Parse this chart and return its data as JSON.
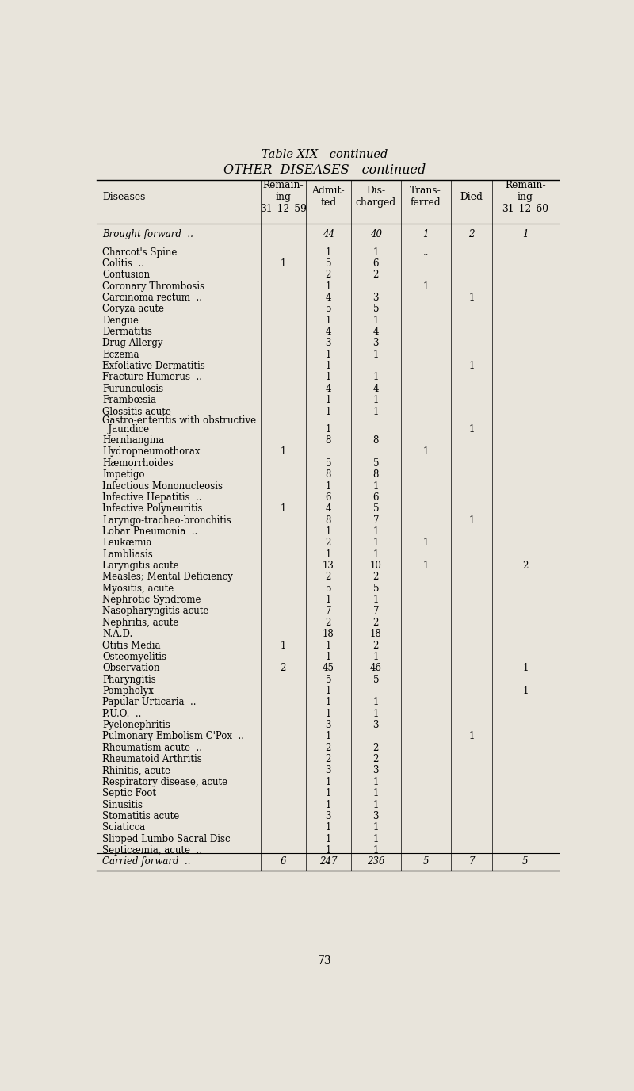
{
  "title1": "Table XIX—continued",
  "title2": "OTHER  DISEASES—continued",
  "page_number": "73",
  "bg_color": "#e8e4db",
  "col_headers": [
    "Diseases",
    "Remain-\ning\n31–12–59",
    "Admit-\nted",
    "Dis-\ncharged",
    "Trans-\nferred",
    "Died",
    "Remain-\ning\n31–12–60"
  ],
  "rows": [
    {
      "name": "Brought forward  ..",
      "italic": true,
      "r59": "",
      "adm": "44",
      "dis": "40",
      "tra": "1",
      "die": "2",
      "r60": "1"
    },
    {
      "name": "Charcot's Spine",
      "italic": false,
      "r59": "",
      "adm": "1",
      "dis": "1",
      "tra": "..",
      "die": "",
      "r60": ""
    },
    {
      "name": "Colitis  ..",
      "italic": false,
      "r59": "1",
      "adm": "5",
      "dis": "6",
      "tra": "",
      "die": "",
      "r60": ""
    },
    {
      "name": "Contusion",
      "italic": false,
      "r59": "",
      "adm": "2",
      "dis": "2",
      "tra": "",
      "die": "",
      "r60": ""
    },
    {
      "name": "Coronary Thrombosis",
      "italic": false,
      "r59": "",
      "adm": "1",
      "dis": "",
      "tra": "1",
      "die": "",
      "r60": ""
    },
    {
      "name": "Carcinoma rectum  ..",
      "italic": false,
      "r59": "",
      "adm": "4",
      "dis": "3",
      "tra": "",
      "die": "1",
      "r60": ""
    },
    {
      "name": "Coryza acute",
      "italic": false,
      "r59": "",
      "adm": "5",
      "dis": "5",
      "tra": "",
      "die": "",
      "r60": ""
    },
    {
      "name": "Dengue",
      "italic": false,
      "r59": "",
      "adm": "1",
      "dis": "1",
      "tra": "",
      "die": "",
      "r60": ""
    },
    {
      "name": "Dermatitis",
      "italic": false,
      "r59": "",
      "adm": "4",
      "dis": "4",
      "tra": "",
      "die": "",
      "r60": ""
    },
    {
      "name": "Drug Allergy",
      "italic": false,
      "r59": "",
      "adm": "3",
      "dis": "3",
      "tra": "",
      "die": "",
      "r60": ""
    },
    {
      "name": "Eczema",
      "italic": false,
      "r59": "",
      "adm": "1",
      "dis": "1",
      "tra": "",
      "die": "",
      "r60": ""
    },
    {
      "name": "Exfoliative Dermatitis",
      "italic": false,
      "r59": "",
      "adm": "1",
      "dis": "",
      "tra": "",
      "die": "1",
      "r60": ""
    },
    {
      "name": "Fracture Humerus  ..",
      "italic": false,
      "r59": "",
      "adm": "1",
      "dis": "1",
      "tra": "",
      "die": "",
      "r60": ""
    },
    {
      "name": "Furunculosis",
      "italic": false,
      "r59": "",
      "adm": "4",
      "dis": "4",
      "tra": "",
      "die": "",
      "r60": ""
    },
    {
      "name": "Frambœsia",
      "italic": false,
      "r59": "",
      "adm": "1",
      "dis": "1",
      "tra": "",
      "die": "",
      "r60": ""
    },
    {
      "name": "Glossitis acute",
      "italic": false,
      "r59": "",
      "adm": "1",
      "dis": "1",
      "tra": "",
      "die": "",
      "r60": ""
    },
    {
      "name": "Gastro-enteritis with obstructive",
      "italic": false,
      "r59": "",
      "adm": "",
      "dis": "",
      "tra": "",
      "die": "",
      "r60": "",
      "continuation": true
    },
    {
      "name": "  Jaundice",
      "italic": false,
      "r59": "",
      "adm": "1",
      "dis": "",
      "tra": "",
      "die": "1",
      "r60": ""
    },
    {
      "name": "Hern̩hangina",
      "italic": false,
      "r59": "",
      "adm": "8",
      "dis": "8",
      "tra": "",
      "die": "",
      "r60": ""
    },
    {
      "name": "Hydropneumothorax",
      "italic": false,
      "r59": "1",
      "adm": "",
      "dis": "",
      "tra": "1",
      "die": "",
      "r60": ""
    },
    {
      "name": "Hæmorrhoides",
      "italic": false,
      "r59": "",
      "adm": "5",
      "dis": "5",
      "tra": "",
      "die": "",
      "r60": ""
    },
    {
      "name": "Impetigo",
      "italic": false,
      "r59": "",
      "adm": "8",
      "dis": "8",
      "tra": "",
      "die": "",
      "r60": ""
    },
    {
      "name": "Infectious Mononucleosis",
      "italic": false,
      "r59": "",
      "adm": "1",
      "dis": "1",
      "tra": "",
      "die": "",
      "r60": ""
    },
    {
      "name": "Infective Hepatitis  ..",
      "italic": false,
      "r59": "",
      "adm": "6",
      "dis": "6",
      "tra": "",
      "die": "",
      "r60": ""
    },
    {
      "name": "Infective Polyneuritis",
      "italic": false,
      "r59": "1",
      "adm": "4",
      "dis": "5",
      "tra": "",
      "die": "",
      "r60": ""
    },
    {
      "name": "Laryngo-tracheo-bronchitis",
      "italic": false,
      "r59": "",
      "adm": "8",
      "dis": "7",
      "tra": "",
      "die": "1",
      "r60": ""
    },
    {
      "name": "Lobar Pneumonia  ..",
      "italic": false,
      "r59": "",
      "adm": "1",
      "dis": "1",
      "tra": "",
      "die": "",
      "r60": ""
    },
    {
      "name": "Leukæmia",
      "italic": false,
      "r59": "",
      "adm": "2",
      "dis": "1",
      "tra": "1",
      "die": "",
      "r60": ""
    },
    {
      "name": "Lambliasis",
      "italic": false,
      "r59": "",
      "adm": "1",
      "dis": "1",
      "tra": "",
      "die": "",
      "r60": ""
    },
    {
      "name": "Laryngitis acute",
      "italic": false,
      "r59": "",
      "adm": "13",
      "dis": "10",
      "tra": "1",
      "die": "",
      "r60": "2"
    },
    {
      "name": "Measles; Mental Deficiency",
      "italic": false,
      "r59": "",
      "adm": "2",
      "dis": "2",
      "tra": "",
      "die": "",
      "r60": ""
    },
    {
      "name": "Myositis, acute",
      "italic": false,
      "r59": "",
      "adm": "5",
      "dis": "5",
      "tra": "",
      "die": "",
      "r60": ""
    },
    {
      "name": "Nephrotic Syndrome",
      "italic": false,
      "r59": "",
      "adm": "1",
      "dis": "1",
      "tra": "",
      "die": "",
      "r60": ""
    },
    {
      "name": "Nasopharyngitis acute",
      "italic": false,
      "r59": "",
      "adm": "7",
      "dis": "7",
      "tra": "",
      "die": "",
      "r60": ""
    },
    {
      "name": "Nephritis, acute",
      "italic": false,
      "r59": "",
      "adm": "2",
      "dis": "2",
      "tra": "",
      "die": "",
      "r60": ""
    },
    {
      "name": "N.A.D.",
      "italic": false,
      "r59": "",
      "adm": "18",
      "dis": "18",
      "tra": "",
      "die": "",
      "r60": ""
    },
    {
      "name": "Otitis Media",
      "italic": false,
      "r59": "1",
      "adm": "1",
      "dis": "2",
      "tra": "",
      "die": "",
      "r60": ""
    },
    {
      "name": "Osteomyelitis",
      "italic": false,
      "r59": "",
      "adm": "1",
      "dis": "1",
      "tra": "",
      "die": "",
      "r60": ""
    },
    {
      "name": "Observation",
      "italic": false,
      "r59": "2",
      "adm": "45",
      "dis": "46",
      "tra": "",
      "die": "",
      "r60": "1"
    },
    {
      "name": "Pharyngitis",
      "italic": false,
      "r59": "",
      "adm": "5",
      "dis": "5",
      "tra": "",
      "die": "",
      "r60": ""
    },
    {
      "name": "Pompholyx",
      "italic": false,
      "r59": "",
      "adm": "1",
      "dis": "",
      "tra": "",
      "die": "",
      "r60": "1"
    },
    {
      "name": "Papular Urticaria  ..",
      "italic": false,
      "r59": "",
      "adm": "1",
      "dis": "1",
      "tra": "",
      "die": "",
      "r60": ""
    },
    {
      "name": "P.U.O.  ..",
      "italic": false,
      "r59": "",
      "adm": "1",
      "dis": "1",
      "tra": "",
      "die": "",
      "r60": ""
    },
    {
      "name": "Pyelonephritis",
      "italic": false,
      "r59": "",
      "adm": "3",
      "dis": "3",
      "tra": "",
      "die": "",
      "r60": ""
    },
    {
      "name": "Pulmonary Embolism C'Pox  ..",
      "italic": false,
      "r59": "",
      "adm": "1",
      "dis": "",
      "tra": "",
      "die": "1",
      "r60": ""
    },
    {
      "name": "Rheumatism acute  ..",
      "italic": false,
      "r59": "",
      "adm": "2",
      "dis": "2",
      "tra": "",
      "die": "",
      "r60": ""
    },
    {
      "name": "Rheumatoid Arthritis",
      "italic": false,
      "r59": "",
      "adm": "2",
      "dis": "2",
      "tra": "",
      "die": "",
      "r60": ""
    },
    {
      "name": "Rhinitis, acute",
      "italic": false,
      "r59": "",
      "adm": "3",
      "dis": "3",
      "tra": "",
      "die": "",
      "r60": ""
    },
    {
      "name": "Respiratory disease, acute",
      "italic": false,
      "r59": "",
      "adm": "1",
      "dis": "1",
      "tra": "",
      "die": "",
      "r60": ""
    },
    {
      "name": "Septic Foot",
      "italic": false,
      "r59": "",
      "adm": "1",
      "dis": "1",
      "tra": "",
      "die": "",
      "r60": ""
    },
    {
      "name": "Sinusitis",
      "italic": false,
      "r59": "",
      "adm": "1",
      "dis": "1",
      "tra": "",
      "die": "",
      "r60": ""
    },
    {
      "name": "Stomatitis acute",
      "italic": false,
      "r59": "",
      "adm": "3",
      "dis": "3",
      "tra": "",
      "die": "",
      "r60": ""
    },
    {
      "name": "Sciaticca",
      "italic": false,
      "r59": "",
      "adm": "1",
      "dis": "1",
      "tra": "",
      "die": "",
      "r60": ""
    },
    {
      "name": "Slipped Lumbo Sacral Disc",
      "italic": false,
      "r59": "",
      "adm": "1",
      "dis": "1",
      "tra": "",
      "die": "",
      "r60": ""
    },
    {
      "name": "Septicæmia, acute  ..",
      "italic": false,
      "r59": "",
      "adm": "1",
      "dis": "1",
      "tra": "",
      "die": "",
      "r60": ""
    },
    {
      "name": "Carried forward  ..",
      "italic": true,
      "r59": "6",
      "adm": "247",
      "dis": "236",
      "tra": "5",
      "die": "7",
      "r60": "5"
    }
  ]
}
